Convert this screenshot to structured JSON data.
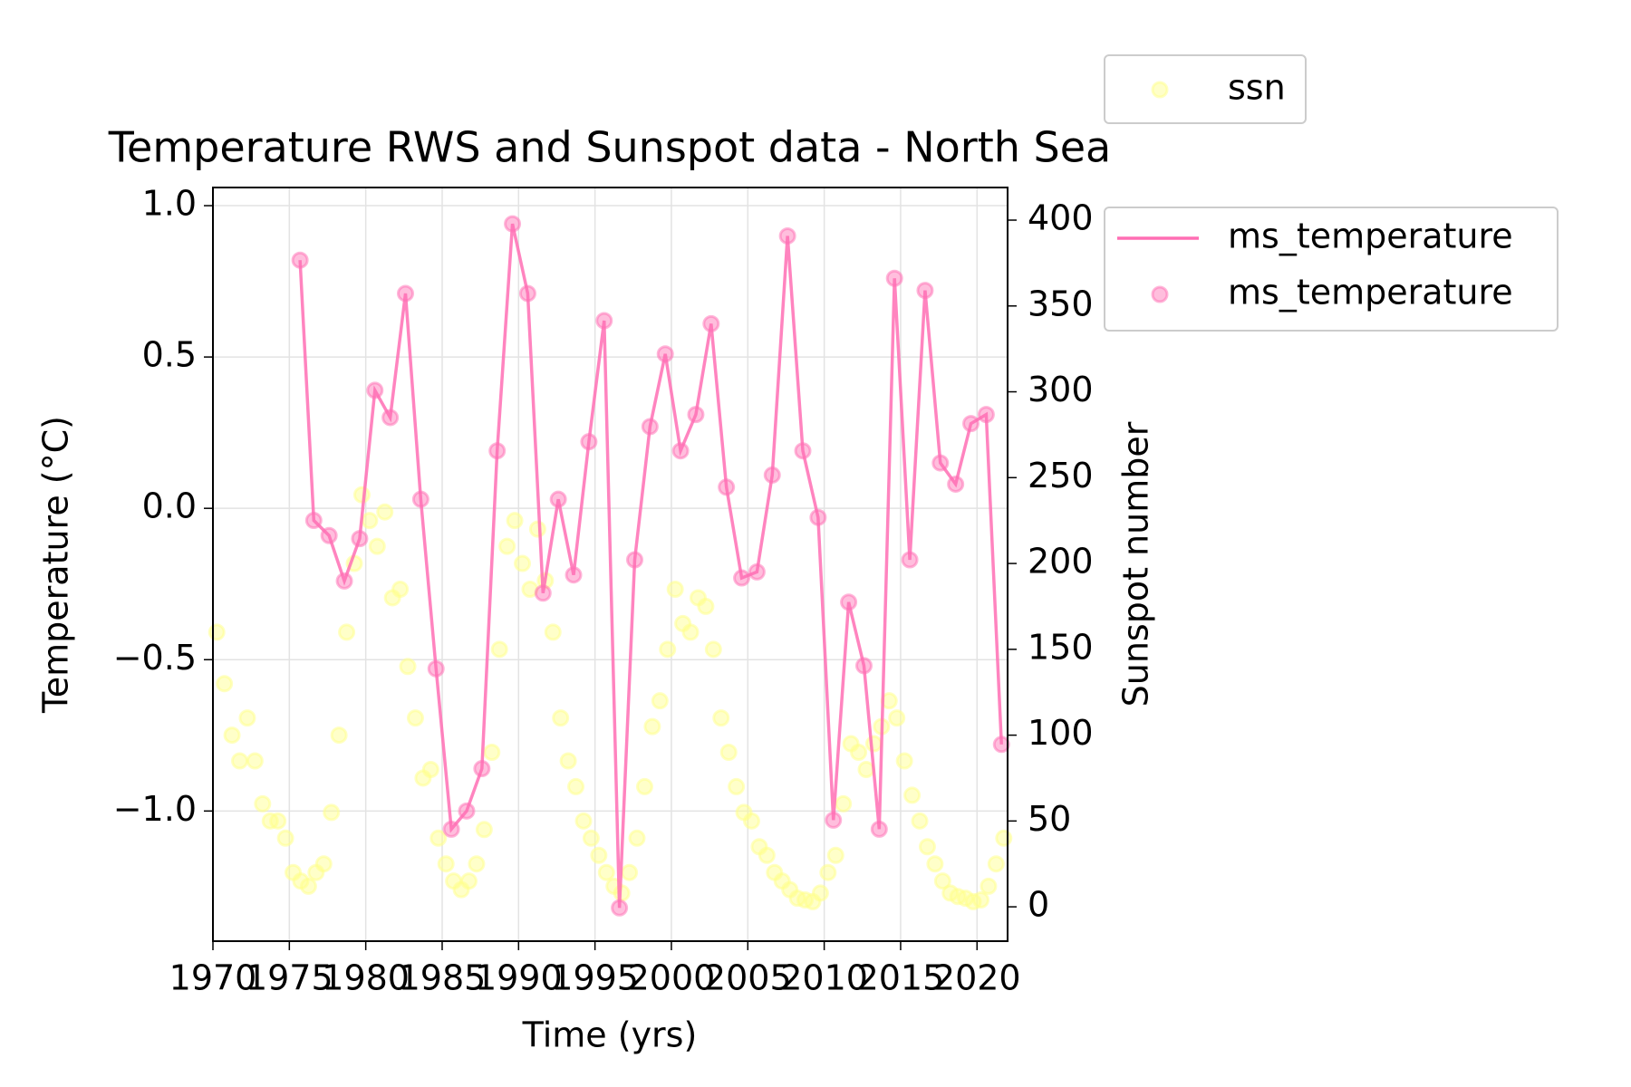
{
  "chart_data": {
    "type": "line",
    "title": "Temperature RWS and Sunspot data - North Sea",
    "x_label": "Time (yrs)",
    "y_label": "Temperature (°C)",
    "y2_label": "Sunspot number",
    "xlim": [
      1970,
      2022
    ],
    "ylim": [
      -1.43,
      1.06
    ],
    "y2lim": [
      -20,
      419
    ],
    "xticks": [
      1970,
      1975,
      1980,
      1985,
      1990,
      1995,
      2000,
      2005,
      2010,
      2015,
      2020
    ],
    "yticks": [
      {
        "value": -1.0,
        "label": "−1.0"
      },
      {
        "value": -0.5,
        "label": "−0.5"
      },
      {
        "value": 0.0,
        "label": "0.0"
      },
      {
        "value": 0.5,
        "label": "0.5"
      },
      {
        "value": 1.0,
        "label": "1.0"
      }
    ],
    "y2ticks": [
      0,
      50,
      100,
      150,
      200,
      250,
      300,
      350,
      400
    ],
    "grid": true,
    "series": [
      {
        "name": "ssn",
        "type": "scatter",
        "axis": "y2",
        "color": "#ffff88",
        "x": [
          1970.25,
          1970.75,
          1971.25,
          1971.75,
          1972.25,
          1972.75,
          1973.25,
          1973.75,
          1974.25,
          1974.75,
          1975.25,
          1975.75,
          1976.25,
          1976.75,
          1977.25,
          1977.75,
          1978.25,
          1978.75,
          1979.25,
          1979.75,
          1980.25,
          1980.75,
          1981.25,
          1981.75,
          1982.25,
          1982.75,
          1983.25,
          1983.75,
          1984.25,
          1984.75,
          1985.25,
          1985.75,
          1986.25,
          1986.75,
          1987.25,
          1987.75,
          1988.25,
          1988.75,
          1989.25,
          1989.75,
          1990.25,
          1990.75,
          1991.25,
          1991.75,
          1992.25,
          1992.75,
          1993.25,
          1993.75,
          1994.25,
          1994.75,
          1995.25,
          1995.75,
          1996.25,
          1996.75,
          1997.25,
          1997.75,
          1998.25,
          1998.75,
          1999.25,
          1999.75,
          2000.25,
          2000.75,
          2001.25,
          2001.75,
          2002.25,
          2002.75,
          2003.25,
          2003.75,
          2004.25,
          2004.75,
          2005.25,
          2005.75,
          2006.25,
          2006.75,
          2007.25,
          2007.75,
          2008.25,
          2008.75,
          2009.25,
          2009.75,
          2010.25,
          2010.75,
          2011.25,
          2011.75,
          2012.25,
          2012.75,
          2013.25,
          2013.75,
          2014.25,
          2014.75,
          2015.25,
          2015.75,
          2016.25,
          2016.75,
          2017.25,
          2017.75,
          2018.25,
          2018.75,
          2019.25,
          2019.75,
          2020.25,
          2020.75,
          2021.25,
          2021.75
        ],
        "values": [
          160,
          130,
          100,
          85,
          110,
          85,
          60,
          50,
          50,
          40,
          20,
          15,
          12,
          20,
          25,
          55,
          100,
          160,
          200,
          240,
          225,
          210,
          230,
          180,
          185,
          140,
          110,
          75,
          80,
          40,
          25,
          15,
          10,
          15,
          25,
          45,
          90,
          150,
          210,
          225,
          200,
          185,
          220,
          190,
          160,
          110,
          85,
          70,
          50,
          40,
          30,
          20,
          12,
          8,
          20,
          40,
          70,
          105,
          120,
          150,
          185,
          165,
          160,
          180,
          175,
          150,
          110,
          90,
          70,
          55,
          50,
          35,
          30,
          20,
          15,
          10,
          5,
          4,
          3,
          8,
          20,
          30,
          60,
          95,
          90,
          80,
          95,
          105,
          120,
          110,
          85,
          65,
          50,
          35,
          25,
          15,
          8,
          6,
          5,
          3,
          4,
          12,
          25,
          40
        ]
      },
      {
        "name": "ms_temperature",
        "type": "line+scatter",
        "axis": "y",
        "color": "#ff6eb4",
        "x": [
          1975.7,
          1976.6,
          1977.6,
          1978.6,
          1979.6,
          1980.6,
          1981.6,
          1982.6,
          1983.6,
          1984.6,
          1985.6,
          1986.6,
          1987.6,
          1988.6,
          1989.6,
          1990.6,
          1991.6,
          1992.6,
          1993.6,
          1994.6,
          1995.6,
          1996.6,
          1997.6,
          1998.6,
          1999.6,
          2000.6,
          2001.6,
          2002.6,
          2003.6,
          2004.6,
          2005.6,
          2006.6,
          2007.6,
          2008.6,
          2009.6,
          2010.6,
          2011.6,
          2012.6,
          2013.6,
          2014.6,
          2015.6,
          2016.6,
          2017.6,
          2018.6,
          2019.6,
          2020.6,
          2021.6
        ],
        "values": [
          0.82,
          -0.04,
          -0.09,
          -0.24,
          -0.1,
          0.39,
          0.3,
          0.71,
          0.03,
          -0.53,
          -1.06,
          -1.0,
          -0.86,
          0.19,
          0.94,
          0.71,
          -0.28,
          0.03,
          -0.22,
          0.22,
          0.62,
          -1.32,
          -0.17,
          0.27,
          0.51,
          0.19,
          0.31,
          0.61,
          0.07,
          -0.23,
          -0.21,
          0.11,
          0.9,
          0.19,
          -0.03,
          -1.03,
          -0.31,
          -0.52,
          -1.06,
          0.76,
          -0.17,
          0.72,
          0.15,
          0.08,
          0.28,
          0.31,
          -0.78
        ]
      }
    ]
  }
}
